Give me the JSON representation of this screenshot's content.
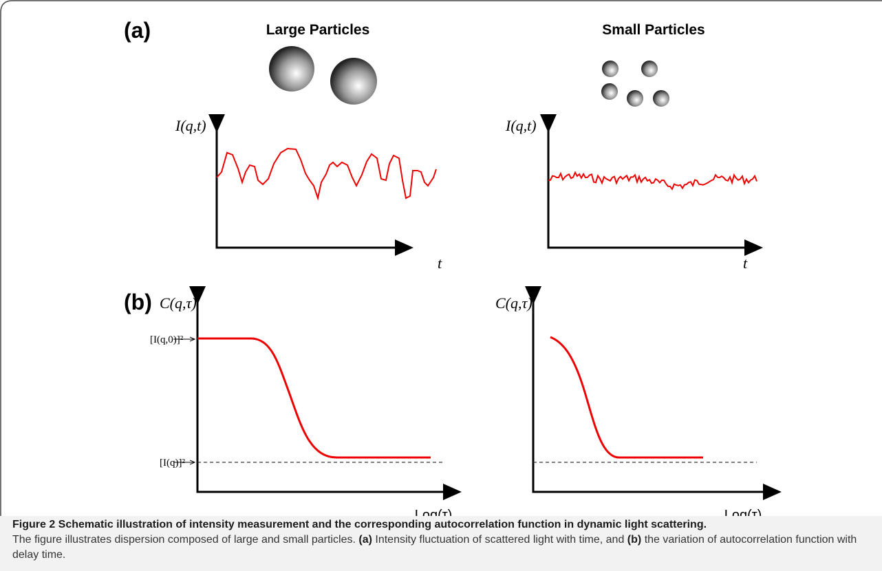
{
  "panel_a": {
    "label": "(a)",
    "left_title": "Large Particles",
    "right_title": "Small Particles",
    "left_y_label": "I(q,t)",
    "right_y_label": "I(q,t)",
    "left_x_label": "t",
    "right_x_label": "t"
  },
  "panel_b": {
    "label": "(b)",
    "left_y_label": "C(q,τ)",
    "right_y_label": "C(q,τ)",
    "top_level_label": "[I(q,0)]²",
    "baseline_label": "[I(q)]²",
    "left_x_label": "Log(τ)",
    "right_x_label": "Log(τ)"
  },
  "caption": {
    "title": "Figure 2 Schematic illustration of intensity measurement and the corresponding autocorrelation function in dynamic light scattering.",
    "text_1": "The figure illustrates dispersion composed of large and small particles.",
    "bold_a": "(a)",
    "text_2": "Intensity fluctuation of scattered light with time, and",
    "bold_b": "(b)",
    "text_3": "the variation of autocorrelation function with delay time."
  }
}
